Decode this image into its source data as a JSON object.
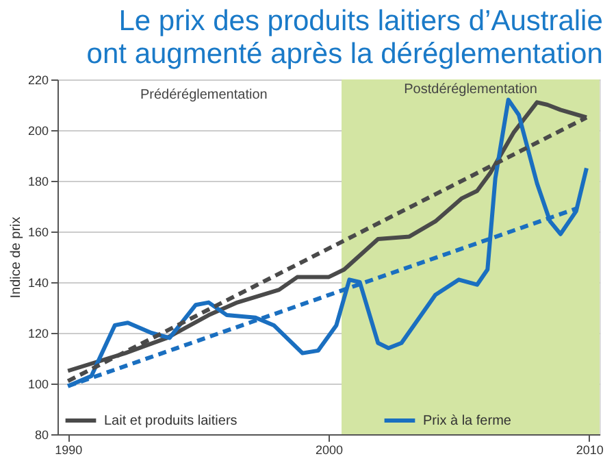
{
  "chart_data": {
    "type": "line",
    "title": [
      "Le prix des produits laitiers d’Australie",
      "ont augmenté après la déréglementation"
    ],
    "ylabel": "Indice de prix",
    "xlim": [
      1989.6,
      2010.4
    ],
    "xticks": [
      1990,
      2000,
      2010
    ],
    "ylim": [
      80,
      220
    ],
    "yticks": [
      80,
      100,
      120,
      140,
      160,
      180,
      200,
      220
    ],
    "grid": "y",
    "legend": "bottom",
    "line_style": "solid",
    "marker": "none",
    "series": [
      {
        "name": "Lait et produits laitiers",
        "color": "#4a4a4a",
        "x": [
          1990,
          1992.2,
          1993.8,
          1995.4,
          1996.5,
          1998.1,
          1998.8,
          2000,
          2000.6,
          2001.9,
          2003.1,
          2004.1,
          2005.1,
          2005.7,
          2006.2,
          2007.1,
          2008,
          2008.4,
          2008.9,
          2009.9
        ],
        "values": [
          105,
          112,
          118,
          127,
          132,
          137,
          142,
          142,
          145,
          157,
          158,
          164,
          173,
          176,
          183,
          199,
          211,
          210,
          208,
          205
        ]
      },
      {
        "name": "Prix à la ferme",
        "color": "#1a6fc0",
        "x": [
          1990,
          1990.9,
          1991.8,
          1992.3,
          1993.2,
          1993.9,
          1994.9,
          1995.4,
          1996.1,
          1997.2,
          1997.9,
          1999,
          1999.6,
          2000.3,
          2000.8,
          2001.2,
          2001.9,
          2002.3,
          2002.8,
          2004.1,
          2005,
          2005.7,
          2006.1,
          2006.4,
          2006.9,
          2007.3,
          2008,
          2008.5,
          2008.9,
          2009.5,
          2009.9
        ],
        "values": [
          99,
          103,
          123,
          124,
          120,
          118,
          131,
          132,
          127,
          126,
          123,
          112,
          113,
          123,
          141,
          140,
          116,
          114,
          116,
          135,
          141,
          139,
          145,
          181,
          212,
          206,
          179,
          164,
          159,
          168,
          185
        ]
      },
      {
        "type": "line",
        "line_style": "dashed",
        "color": "#4a4a4a",
        "x": [
          1990,
          2009.9
        ],
        "values": [
          101,
          205
        ]
      },
      {
        "type": "line",
        "line_style": "dashed",
        "color": "#1a6fc0",
        "x": [
          1990,
          2009.5
        ],
        "values": [
          99,
          169
        ]
      }
    ],
    "bands": [
      {
        "axis": "x",
        "from": 2000.5,
        "to": 2010.4,
        "label": "Postdéréglementation",
        "color": "#d3e5a3"
      }
    ],
    "annotations": [
      "Prédéréglementation"
    ]
  }
}
